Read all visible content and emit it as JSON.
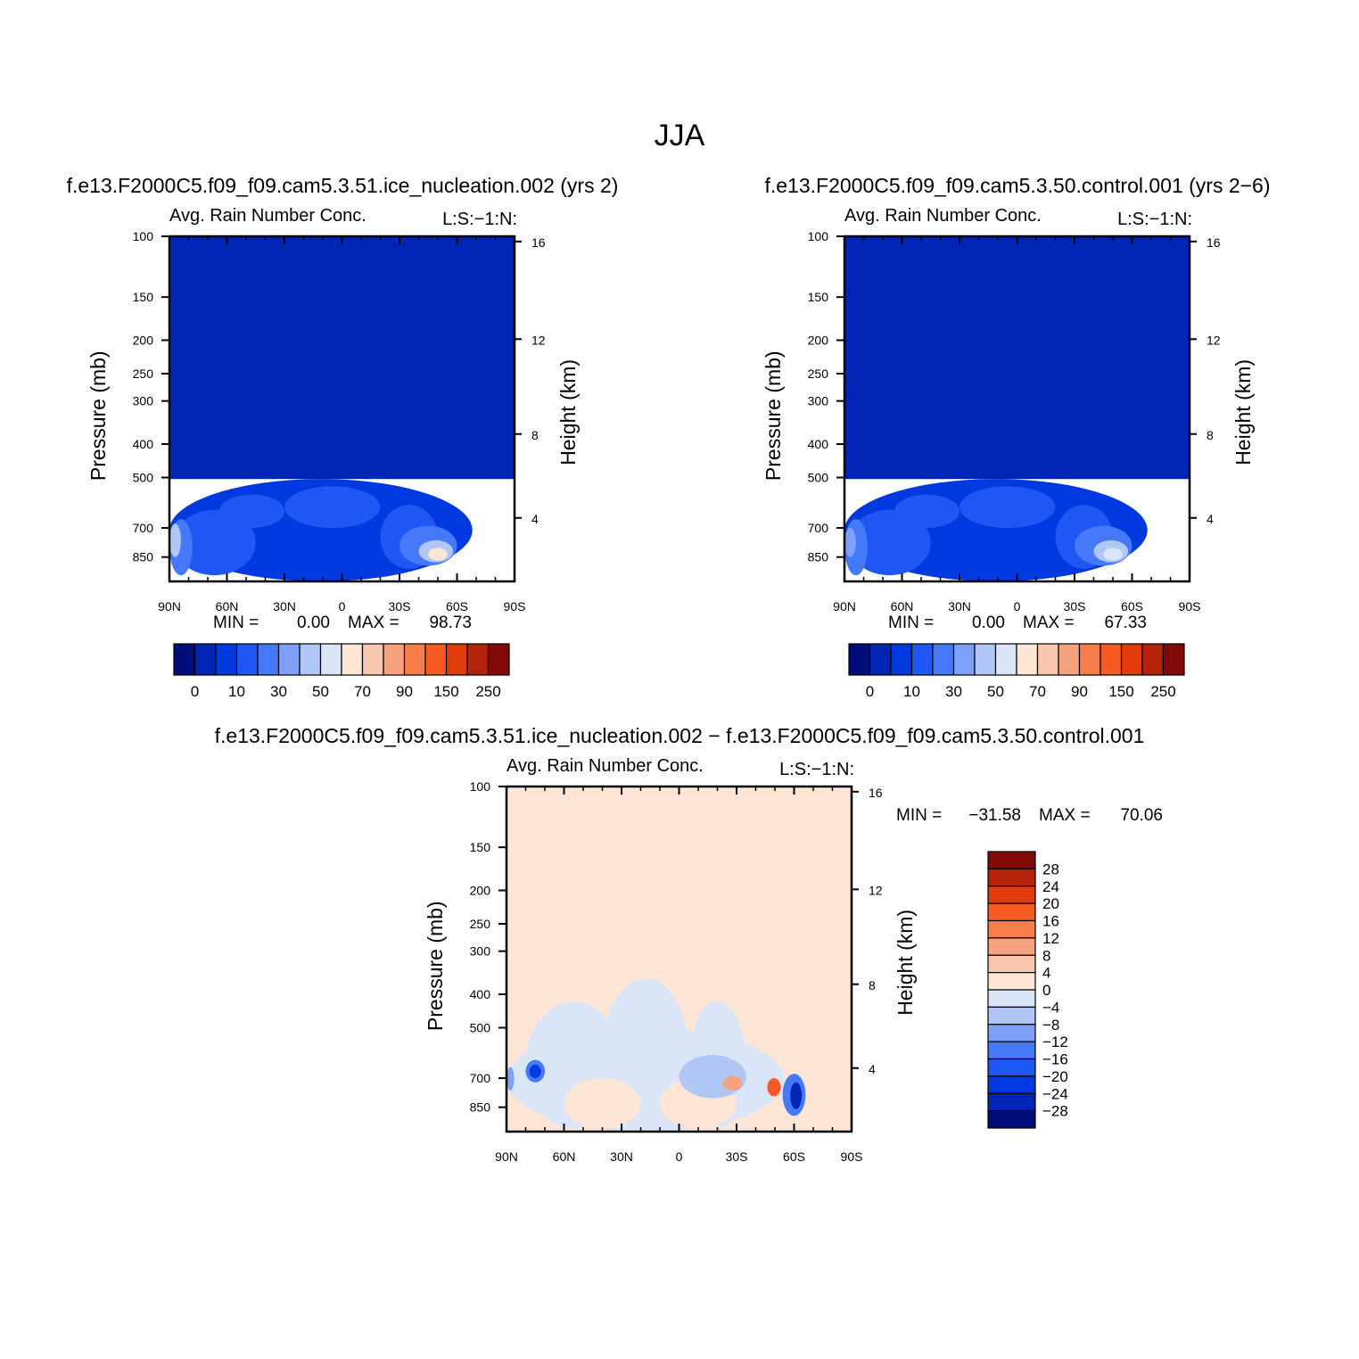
{
  "title": "JJA",
  "chart_data": [
    {
      "type": "heatmap",
      "case_title": "f.e13.F2000C5.f09_f09.cam5.3.51.ice_nucleation.002 (yrs 2)",
      "subtitle_left": "Avg. Rain Number Conc.",
      "subtitle_right": "L:S:−1:N:",
      "ylabel": "Pressure (mb)",
      "ylabel_right": "Height (km)",
      "x_ticks": [
        "90N",
        "60N",
        "30N",
        "0",
        "30S",
        "60S",
        "90S"
      ],
      "xlim": [
        90,
        -90
      ],
      "y_ticks": [
        "100",
        "150",
        "200",
        "250",
        "300",
        "400",
        "500",
        "700",
        "850"
      ],
      "ylim": [
        1000,
        100
      ],
      "y_scale": "log",
      "y_right_ticks": [
        "16",
        "12",
        "8",
        "4"
      ],
      "stats": {
        "min_label": "MIN =",
        "min": "0.00",
        "max_label": "MAX =",
        "max": "98.73"
      },
      "colorbar": {
        "orientation": "horizontal",
        "labels": [
          "0",
          "10",
          "30",
          "50",
          "70",
          "90",
          "150",
          "250"
        ],
        "colors": [
          "#000d7a",
          "#0024b3",
          "#0039e0",
          "#1f57f5",
          "#4679fa",
          "#7ea1f7",
          "#b0c7f5",
          "#dae6f8",
          "#fde6d6",
          "#f9c7ae",
          "#f7a27e",
          "#f77d4c",
          "#f75a22",
          "#e23b0c",
          "#b52208",
          "#800a08"
        ]
      },
      "field_regions": [
        {
          "lat": [
            90,
            -90
          ],
          "p": [
            100,
            505
          ],
          "level": 1
        },
        {
          "lat": [
            90,
            -68
          ],
          "p": [
            505,
            1000
          ],
          "level": 2
        },
        {
          "lat": [
            88,
            45
          ],
          "p": [
            620,
            960
          ],
          "level": 3
        },
        {
          "lat": [
            64,
            30
          ],
          "p": [
            560,
            700
          ],
          "level": 3
        },
        {
          "lat": [
            30,
            -20
          ],
          "p": [
            530,
            700
          ],
          "level": 3
        },
        {
          "lat": [
            -20,
            -50
          ],
          "p": [
            600,
            920
          ],
          "level": 3
        },
        {
          "lat": [
            90,
            78
          ],
          "p": [
            660,
            960
          ],
          "level": 4
        },
        {
          "lat": [
            -30,
            -60
          ],
          "p": [
            690,
            900
          ],
          "level": 4
        },
        {
          "lat": [
            90,
            84
          ],
          "p": [
            680,
            850
          ],
          "level": 6
        },
        {
          "lat": [
            -40,
            -58
          ],
          "p": [
            760,
            880
          ],
          "level": 6
        },
        {
          "lat": [
            -45,
            -55
          ],
          "p": [
            800,
            870
          ],
          "level": 8
        }
      ]
    },
    {
      "type": "heatmap",
      "case_title": "f.e13.F2000C5.f09_f09.cam5.3.50.control.001 (yrs 2−6)",
      "subtitle_left": "Avg. Rain Number Conc.",
      "subtitle_right": "L:S:−1:N:",
      "ylabel": "Pressure (mb)",
      "ylabel_right": "Height (km)",
      "x_ticks": [
        "90N",
        "60N",
        "30N",
        "0",
        "30S",
        "60S",
        "90S"
      ],
      "xlim": [
        90,
        -90
      ],
      "y_ticks": [
        "100",
        "150",
        "200",
        "250",
        "300",
        "400",
        "500",
        "700",
        "850"
      ],
      "ylim": [
        1000,
        100
      ],
      "y_scale": "log",
      "y_right_ticks": [
        "16",
        "12",
        "8",
        "4"
      ],
      "stats": {
        "min_label": "MIN =",
        "min": "0.00",
        "max_label": "MAX =",
        "max": "67.33"
      },
      "colorbar": {
        "orientation": "horizontal",
        "labels": [
          "0",
          "10",
          "30",
          "50",
          "70",
          "90",
          "150",
          "250"
        ],
        "colors": [
          "#000d7a",
          "#0024b3",
          "#0039e0",
          "#1f57f5",
          "#4679fa",
          "#7ea1f7",
          "#b0c7f5",
          "#dae6f8",
          "#fde6d6",
          "#f9c7ae",
          "#f7a27e",
          "#f77d4c",
          "#f75a22",
          "#e23b0c",
          "#b52208",
          "#800a08"
        ]
      },
      "field_regions": [
        {
          "lat": [
            90,
            -90
          ],
          "p": [
            100,
            505
          ],
          "level": 1
        },
        {
          "lat": [
            90,
            -68
          ],
          "p": [
            505,
            1000
          ],
          "level": 2
        },
        {
          "lat": [
            88,
            45
          ],
          "p": [
            620,
            960
          ],
          "level": 3
        },
        {
          "lat": [
            64,
            30
          ],
          "p": [
            560,
            700
          ],
          "level": 3
        },
        {
          "lat": [
            30,
            -20
          ],
          "p": [
            530,
            700
          ],
          "level": 3
        },
        {
          "lat": [
            -20,
            -50
          ],
          "p": [
            600,
            920
          ],
          "level": 3
        },
        {
          "lat": [
            90,
            78
          ],
          "p": [
            660,
            960
          ],
          "level": 4
        },
        {
          "lat": [
            -30,
            -60
          ],
          "p": [
            690,
            900
          ],
          "level": 4
        },
        {
          "lat": [
            90,
            84
          ],
          "p": [
            700,
            850
          ],
          "level": 5
        },
        {
          "lat": [
            -40,
            -58
          ],
          "p": [
            760,
            880
          ],
          "level": 6
        },
        {
          "lat": [
            -45,
            -55
          ],
          "p": [
            800,
            870
          ],
          "level": 7
        }
      ]
    },
    {
      "type": "heatmap",
      "case_title": "f.e13.F2000C5.f09_f09.cam5.3.51.ice_nucleation.002 − f.e13.F2000C5.f09_f09.cam5.3.50.control.001",
      "subtitle_left": "Avg. Rain Number Conc.",
      "subtitle_right": "L:S:−1:N:",
      "ylabel": "Pressure (mb)",
      "ylabel_right": "Height (km)",
      "x_ticks": [
        "90N",
        "60N",
        "30N",
        "0",
        "30S",
        "60S",
        "90S"
      ],
      "xlim": [
        90,
        -90
      ],
      "y_ticks": [
        "100",
        "150",
        "200",
        "250",
        "300",
        "400",
        "500",
        "700",
        "850"
      ],
      "ylim": [
        1000,
        100
      ],
      "y_scale": "log",
      "y_right_ticks": [
        "16",
        "12",
        "8",
        "4"
      ],
      "stats": {
        "min_label": "MIN =",
        "min": "−31.58",
        "max_label": "MAX =",
        "max": "70.06"
      },
      "colorbar": {
        "orientation": "vertical",
        "labels": [
          "28",
          "24",
          "20",
          "16",
          "12",
          "8",
          "4",
          "0",
          "−4",
          "−8",
          "−12",
          "−16",
          "−20",
          "−24",
          "−28"
        ],
        "colors": [
          "#800a08",
          "#b52208",
          "#e23b0c",
          "#f75a22",
          "#f77d4c",
          "#f7a27e",
          "#f9c7ae",
          "#fde6d6",
          "#dae6f8",
          "#b0c7f5",
          "#7ea1f7",
          "#4679fa",
          "#1f57f5",
          "#0039e0",
          "#0024b3",
          "#000d7a"
        ]
      },
      "field_regions": [
        {
          "lat": [
            90,
            -90
          ],
          "p": [
            100,
            1000
          ],
          "level": 7
        },
        {
          "lat": [
            90,
            -55
          ],
          "p": [
            500,
            1000
          ],
          "level": 8
        },
        {
          "lat": [
            80,
            30
          ],
          "p": [
            420,
            980
          ],
          "level": 8
        },
        {
          "lat": [
            40,
            -5
          ],
          "p": [
            360,
            980
          ],
          "level": 8
        },
        {
          "lat": [
            -5,
            -35
          ],
          "p": [
            420,
            980
          ],
          "level": 8
        },
        {
          "lat": [
            60,
            20
          ],
          "p": [
            700,
            980
          ],
          "level": 7
        },
        {
          "lat": [
            10,
            -30
          ],
          "p": [
            700,
            980
          ],
          "level": 7
        },
        {
          "lat": [
            90,
            86
          ],
          "p": [
            650,
            760
          ],
          "level": 10
        },
        {
          "lat": [
            80,
            70
          ],
          "p": [
            620,
            720
          ],
          "level": 11
        },
        {
          "lat": [
            78,
            72
          ],
          "p": [
            640,
            700
          ],
          "level": 13
        },
        {
          "lat": [
            0,
            -35
          ],
          "p": [
            600,
            800
          ],
          "level": 9
        },
        {
          "lat": [
            -23,
            -33
          ],
          "p": [
            690,
            760
          ],
          "level": 5
        },
        {
          "lat": [
            -46,
            -53
          ],
          "p": [
            700,
            790
          ],
          "level": 3
        },
        {
          "lat": [
            -54,
            -66
          ],
          "p": [
            680,
            900
          ],
          "level": 11
        },
        {
          "lat": [
            -58,
            -64
          ],
          "p": [
            720,
            860
          ],
          "level": 14
        }
      ]
    }
  ]
}
